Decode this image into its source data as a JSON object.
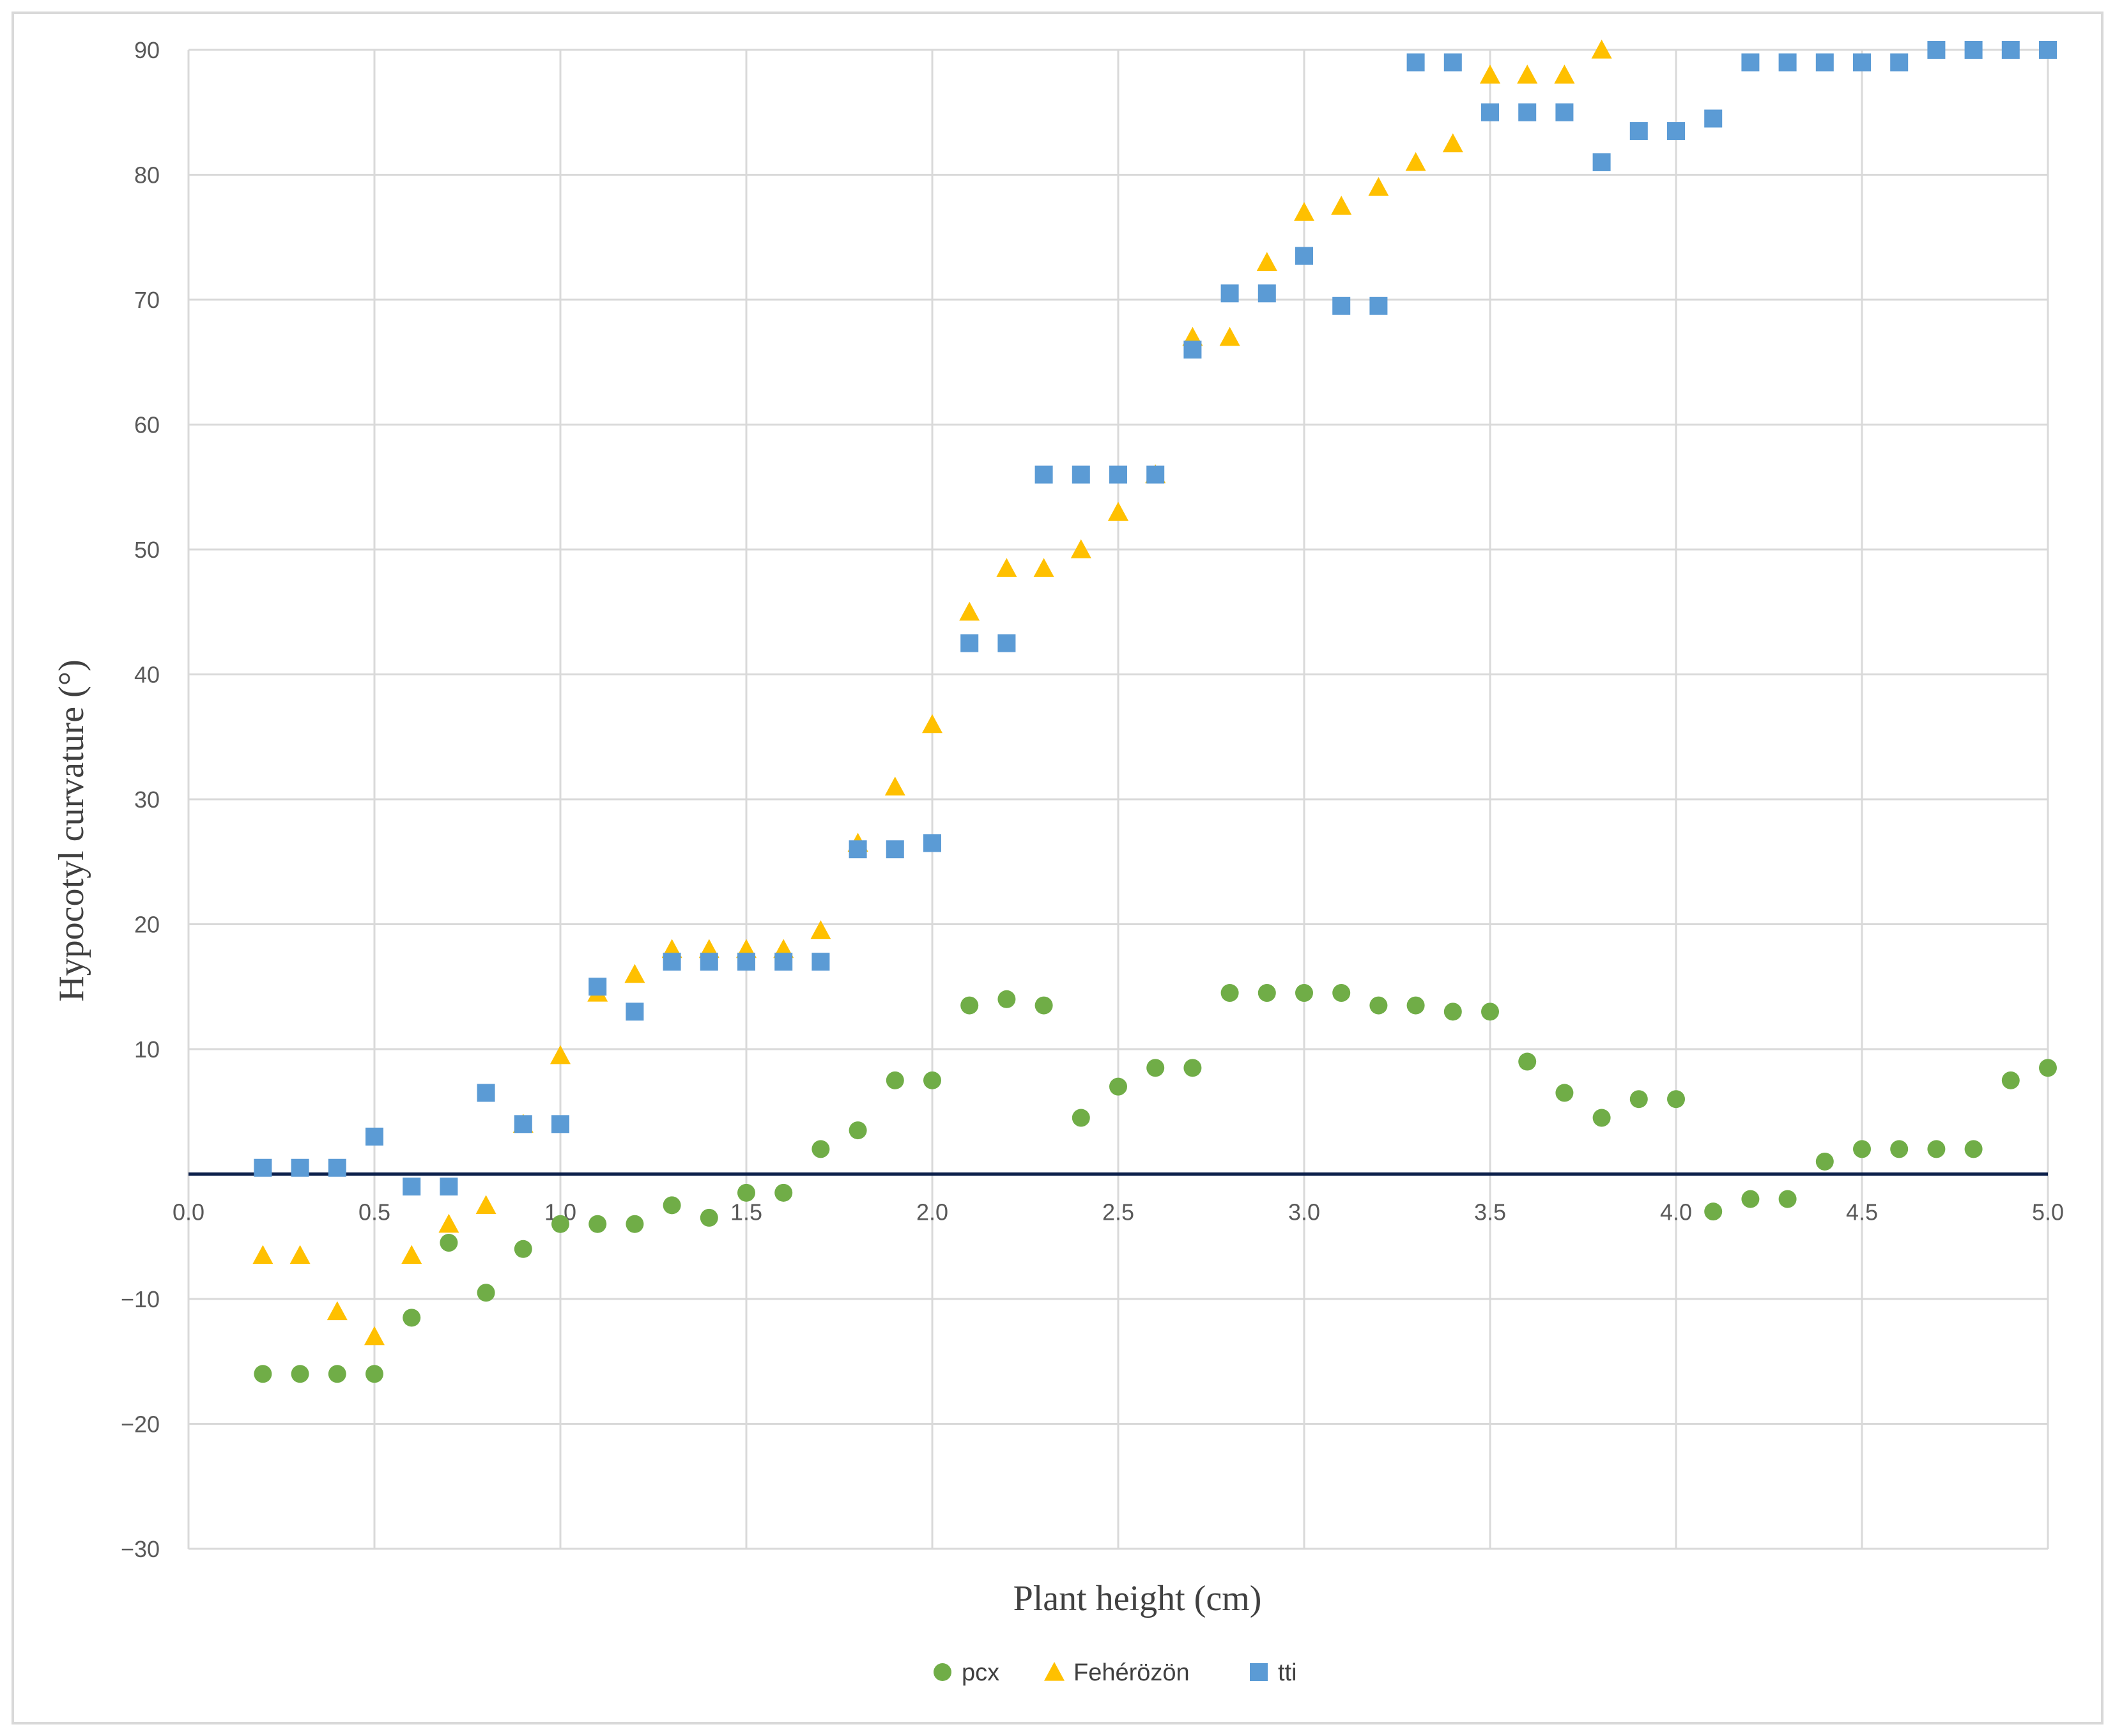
{
  "chart_data": {
    "type": "scatter",
    "title": "",
    "xlabel": "Plant height (cm)",
    "ylabel": "Hypocotyl curvature (°)",
    "xlim": [
      0,
      5
    ],
    "ylim": [
      -30,
      90
    ],
    "x_ticks": [
      "0.0",
      "0.5",
      "1.0",
      "1.5",
      "2.0",
      "2.5",
      "3.0",
      "3.5",
      "4.0",
      "4.5",
      "5.0"
    ],
    "y_ticks": [
      "−30",
      "−20",
      "−10",
      "",
      "10",
      "20",
      "30",
      "40",
      "50",
      "60",
      "70",
      "80",
      "90"
    ],
    "grid": true,
    "legend_position": "bottom",
    "series": [
      {
        "name": "pcx",
        "marker": "circle",
        "color": "#70AD47",
        "x": [
          0.2,
          0.3,
          0.4,
          0.5,
          0.6,
          0.7,
          0.8,
          0.9,
          1.0,
          1.1,
          1.2,
          1.3,
          1.4,
          1.5,
          1.6,
          1.7,
          1.8,
          1.9,
          2.0,
          2.1,
          2.2,
          2.3,
          2.4,
          2.5,
          2.6,
          2.7,
          2.8,
          2.9,
          3.0,
          3.1,
          3.2,
          3.3,
          3.4,
          3.5,
          3.6,
          3.7,
          3.8,
          3.9,
          4.0,
          4.1,
          4.2,
          4.3,
          4.4,
          4.5,
          4.6,
          4.7,
          4.8,
          4.9,
          5.0
        ],
        "y": [
          -16,
          -16,
          -16,
          -16,
          -11.5,
          -5.5,
          -9.5,
          -6,
          -4,
          -4,
          -4,
          -2.5,
          -3.5,
          -1.5,
          -1.5,
          2,
          3.5,
          7.5,
          7.5,
          13.5,
          14,
          13.5,
          4.5,
          7,
          8.5,
          8.5,
          14.5,
          14.5,
          14.5,
          14.5,
          13.5,
          13.5,
          13,
          13,
          9,
          6.5,
          4.5,
          6,
          6,
          -3,
          -2,
          -2,
          1,
          2,
          2,
          2,
          2,
          7.5,
          8.5
        ]
      },
      {
        "name": "Fehérözön",
        "marker": "triangle",
        "color": "#FFC000",
        "x": [
          0.2,
          0.3,
          0.4,
          0.5,
          0.6,
          0.7,
          0.8,
          0.9,
          1.0,
          1.1,
          1.2,
          1.3,
          1.4,
          1.5,
          1.6,
          1.7,
          1.8,
          1.9,
          2.0,
          2.1,
          2.2,
          2.3,
          2.4,
          2.5,
          2.6,
          2.7,
          2.8,
          2.9,
          3.0,
          3.1,
          3.2,
          3.3,
          3.4,
          3.5,
          3.6,
          3.7,
          3.8
        ],
        "y": [
          -6.5,
          -6.5,
          -11,
          -13,
          -6.5,
          -4,
          -2.5,
          4,
          9.5,
          14.5,
          16,
          18,
          18,
          18,
          18,
          19.5,
          26.5,
          31,
          36,
          45,
          48.5,
          48.5,
          50,
          53,
          56,
          67,
          67,
          73,
          77,
          77.5,
          79,
          81,
          82.5,
          88,
          88,
          88,
          90
        ]
      },
      {
        "name": "tti",
        "marker": "square",
        "color": "#5B9BD5",
        "x": [
          0.2,
          0.3,
          0.4,
          0.5,
          0.6,
          0.7,
          0.8,
          0.9,
          1.0,
          1.1,
          1.2,
          1.3,
          1.4,
          1.5,
          1.6,
          1.7,
          1.8,
          1.9,
          2.0,
          2.1,
          2.2,
          2.3,
          2.4,
          2.5,
          2.6,
          2.7,
          2.8,
          2.9,
          3.0,
          3.1,
          3.2,
          3.3,
          3.4,
          3.5,
          3.6,
          3.7,
          3.8,
          3.9,
          4.0,
          4.1,
          4.2,
          4.3,
          4.4,
          4.5,
          4.6,
          4.7,
          4.8,
          4.9,
          5.0
        ],
        "y": [
          0.5,
          0.5,
          0.5,
          3,
          -1,
          -1,
          6.5,
          4,
          4,
          15,
          13,
          17,
          17,
          17,
          17,
          17,
          26,
          26,
          26.5,
          42.5,
          42.5,
          56,
          56,
          56,
          56,
          66,
          70.5,
          70.5,
          73.5,
          69.5,
          69.5,
          89,
          89,
          85,
          85,
          85,
          81,
          83.5,
          83.5,
          84.5,
          89,
          89,
          89,
          89,
          89,
          90,
          90,
          90,
          90
        ]
      }
    ]
  }
}
